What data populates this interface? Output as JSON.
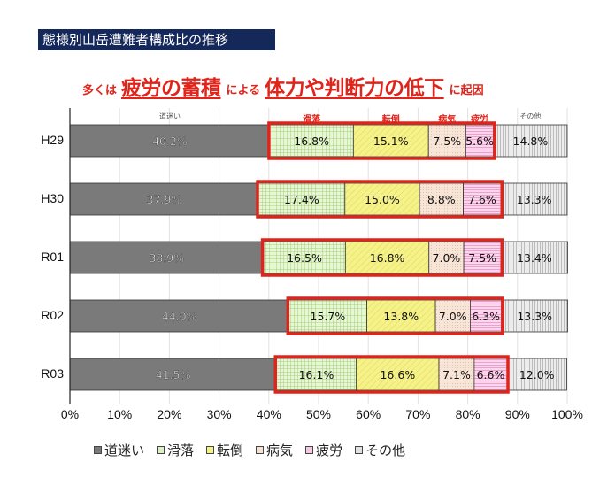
{
  "title": "態様別山岳遭難者構成比の推移",
  "headline": {
    "part1": "多くは",
    "part2": "疲労の蓄積",
    "part3": "による",
    "part4": "体力や判断力の低下",
    "part5": "に起因"
  },
  "column_labels": [
    {
      "text": "道迷い",
      "style": "gray"
    },
    {
      "text": "滑落",
      "style": "red"
    },
    {
      "text": "転倒",
      "style": "red"
    },
    {
      "text": "病気",
      "style": "red"
    },
    {
      "text": "疲労",
      "style": "red"
    },
    {
      "text": "その他",
      "style": "gray"
    }
  ],
  "colors": {
    "title_bg": "#14285a",
    "highlight": "#e0241b",
    "michimayoi": "#7a7a7a",
    "katsuraku": "#dff0c8",
    "tentou": "#f6f28a",
    "byouki": "#f5e3d4",
    "hirou": "#f8c9e4",
    "sonota": "#e2e2e2"
  },
  "chart_data": {
    "type": "bar",
    "orientation": "horizontal",
    "stacked": "percent",
    "categories": [
      "H29",
      "H30",
      "R01",
      "R02",
      "R03"
    ],
    "series": [
      {
        "name": "道迷い",
        "values": [
          40.2,
          37.9,
          38.9,
          44.0,
          41.5
        ],
        "labels": [
          "40.2%",
          "37.9%",
          "38.9%",
          "44.0%",
          "41.5%"
        ]
      },
      {
        "name": "滑落",
        "values": [
          16.8,
          17.4,
          16.5,
          15.7,
          16.1
        ],
        "labels": [
          "16.8%",
          "17.4%",
          "16.5%",
          "15.7%",
          "16.1%"
        ]
      },
      {
        "name": "転倒",
        "values": [
          15.1,
          15.0,
          16.8,
          13.8,
          16.6
        ],
        "labels": [
          "15.1%",
          "15.0%",
          "16.8%",
          "13.8%",
          "16.6%"
        ]
      },
      {
        "name": "病気",
        "values": [
          7.5,
          8.8,
          7.0,
          7.0,
          7.1
        ],
        "labels": [
          "7.5%",
          "8.8%",
          "7.0%",
          "7.0%",
          "7.1%"
        ]
      },
      {
        "name": "疲労",
        "values": [
          5.6,
          7.6,
          7.5,
          6.3,
          6.6
        ],
        "labels": [
          "5.6%",
          "7.6%",
          "7.5%",
          "6.3%",
          "6.6%"
        ]
      },
      {
        "name": "その他",
        "values": [
          14.8,
          13.3,
          13.4,
          13.3,
          12.0
        ],
        "labels": [
          "14.8%",
          "13.3%",
          "13.4%",
          "13.3%",
          "12.0%"
        ]
      }
    ],
    "highlighted_series": [
      "滑落",
      "転倒",
      "病気",
      "疲労"
    ],
    "xlim": [
      0,
      100
    ],
    "xticks": [
      "0%",
      "10%",
      "20%",
      "30%",
      "40%",
      "50%",
      "60%",
      "70%",
      "80%",
      "90%",
      "100%"
    ],
    "grid": true,
    "legend": "bottom",
    "legend_entries": [
      "道迷い",
      "滑落",
      "転倒",
      "病気",
      "疲労",
      "その他"
    ]
  }
}
